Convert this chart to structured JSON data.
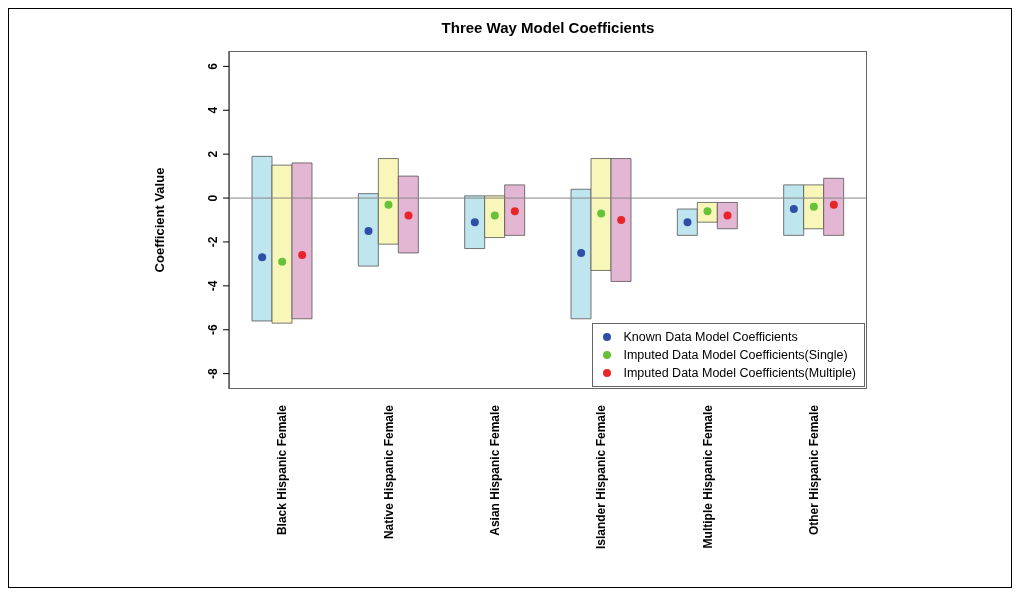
{
  "chart_data": {
    "type": "bar",
    "title": "Three Way Model Coefficients",
    "ylabel": "Coefficient Value",
    "categories": [
      "Black Hispanic Female",
      "Native Hispanic Female",
      "Asian Hispanic Female",
      "Islander Hispanic Female",
      "Multiple Hispanic Female",
      "Other Hispanic Female"
    ],
    "series": [
      {
        "type": "bar",
        "color": "#bfe5ef",
        "base": [
          -5.6,
          -3.1,
          -2.3,
          -5.5,
          -1.7,
          -1.7
        ],
        "values": [
          7.5,
          3.3,
          2.4,
          5.9,
          1.2,
          2.3
        ]
      },
      {
        "type": "bar",
        "color": "#f8f6b8",
        "base": [
          -5.7,
          -2.1,
          -1.8,
          -3.3,
          -1.1,
          -1.4
        ],
        "values": [
          7.2,
          3.9,
          1.9,
          5.1,
          0.9,
          2.0
        ]
      },
      {
        "type": "bar",
        "color": "#e3b6d3",
        "base": [
          -5.5,
          -2.5,
          -1.7,
          -3.8,
          -1.4,
          -1.7
        ],
        "values": [
          7.1,
          3.5,
          2.3,
          5.6,
          1.2,
          2.6
        ]
      },
      {
        "type": "scatter",
        "name": "Known Data Model Coefficients",
        "color": "#2e4fa5",
        "x": [
          "Black Hispanic Female",
          "Native Hispanic Female",
          "Asian Hispanic Female",
          "Islander Hispanic Female",
          "Multiple Hispanic Female",
          "Other Hispanic Female"
        ],
        "values": [
          -2.7,
          -1.5,
          -1.1,
          -2.5,
          -1.1,
          -0.5
        ]
      },
      {
        "type": "scatter",
        "name": "Imputed Data Model Coefficients(Single)",
        "color": "#67c23a",
        "x": [
          "Black Hispanic Female",
          "Native Hispanic Female",
          "Asian Hispanic Female",
          "Islander Hispanic Female",
          "Multiple Hispanic Female",
          "Other Hispanic Female"
        ],
        "values": [
          -2.9,
          -0.3,
          -0.8,
          -0.7,
          -0.6,
          -0.4
        ]
      },
      {
        "type": "scatter",
        "name": "Imputed Data Model Coefficients(Multiple)",
        "color": "#e8262a",
        "x": [
          "Black Hispanic Female",
          "Native Hispanic Female",
          "Asian Hispanic Female",
          "Islander Hispanic Female",
          "Multiple Hispanic Female",
          "Other Hispanic Female"
        ],
        "values": [
          -2.6,
          -0.8,
          -0.6,
          -1.0,
          -0.8,
          -0.3
        ]
      }
    ],
    "ylim": [
      -8.7,
      6.7
    ],
    "yticks": [
      -8,
      -6,
      -4,
      -2,
      0,
      2,
      4,
      6
    ],
    "ref_lines": [
      {
        "axis": "y",
        "value": 0,
        "color": "#888888"
      }
    ],
    "grid": false,
    "legend": "bottom right",
    "marker": "circle"
  }
}
